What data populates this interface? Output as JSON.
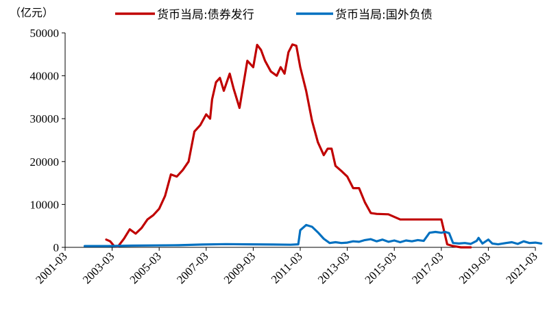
{
  "chart_data": {
    "type": "line",
    "unit_label": "（亿元）",
    "ylim": [
      0,
      50000
    ],
    "y_ticks": [
      "0",
      "10000",
      "20000",
      "30000",
      "40000",
      "50000"
    ],
    "y_tick_values": [
      0,
      10000,
      20000,
      30000,
      40000,
      50000
    ],
    "x_ticks": [
      "2001-03",
      "2003-03",
      "2005-03",
      "2007-03",
      "2009-03",
      "2011-03",
      "2013-03",
      "2015-03",
      "2017-03",
      "2019-03",
      "2021-03"
    ],
    "xlim": [
      "2001-03",
      "2021-03"
    ],
    "legend_position": "top",
    "grid": false,
    "series": [
      {
        "name": "货币当局:债券发行",
        "color": "#c00000",
        "points": [
          [
            "2002-12",
            1800
          ],
          [
            "2003-02",
            1400
          ],
          [
            "2003-04",
            300
          ],
          [
            "2003-06",
            200
          ],
          [
            "2003-09",
            2000
          ],
          [
            "2003-12",
            4200
          ],
          [
            "2004-03",
            3200
          ],
          [
            "2004-06",
            4500
          ],
          [
            "2004-09",
            6500
          ],
          [
            "2004-12",
            7500
          ],
          [
            "2005-03",
            9000
          ],
          [
            "2005-06",
            12000
          ],
          [
            "2005-09",
            17000
          ],
          [
            "2005-12",
            16500
          ],
          [
            "2006-03",
            18000
          ],
          [
            "2006-06",
            20000
          ],
          [
            "2006-09",
            27000
          ],
          [
            "2006-12",
            28500
          ],
          [
            "2007-03",
            31000
          ],
          [
            "2007-05",
            30000
          ],
          [
            "2007-06",
            34500
          ],
          [
            "2007-08",
            38500
          ],
          [
            "2007-10",
            39500
          ],
          [
            "2007-12",
            36500
          ],
          [
            "2008-03",
            40500
          ],
          [
            "2008-05",
            37000
          ],
          [
            "2008-08",
            32500
          ],
          [
            "2008-10",
            38000
          ],
          [
            "2008-12",
            43500
          ],
          [
            "2009-03",
            42000
          ],
          [
            "2009-05",
            47200
          ],
          [
            "2009-07",
            46000
          ],
          [
            "2009-09",
            43500
          ],
          [
            "2009-12",
            41000
          ],
          [
            "2010-03",
            40000
          ],
          [
            "2010-05",
            42000
          ],
          [
            "2010-07",
            40500
          ],
          [
            "2010-09",
            45500
          ],
          [
            "2010-11",
            47300
          ],
          [
            "2011-01",
            47000
          ],
          [
            "2011-03",
            42000
          ],
          [
            "2011-06",
            36500
          ],
          [
            "2011-09",
            29500
          ],
          [
            "2011-12",
            24500
          ],
          [
            "2012-03",
            21500
          ],
          [
            "2012-05",
            23000
          ],
          [
            "2012-07",
            23000
          ],
          [
            "2012-09",
            19000
          ],
          [
            "2012-12",
            17800
          ],
          [
            "2013-03",
            16500
          ],
          [
            "2013-06",
            13800
          ],
          [
            "2013-09",
            13800
          ],
          [
            "2013-12",
            10500
          ],
          [
            "2014-03",
            8000
          ],
          [
            "2014-06",
            7800
          ],
          [
            "2014-12",
            7700
          ],
          [
            "2015-06",
            6500
          ],
          [
            "2016-03",
            6500
          ],
          [
            "2016-12",
            6500
          ],
          [
            "2017-03",
            6500
          ],
          [
            "2017-06",
            700
          ],
          [
            "2017-09",
            300
          ],
          [
            "2018-01",
            0
          ],
          [
            "2018-06",
            0
          ]
        ]
      },
      {
        "name": "货币当局:国外负债",
        "color": "#0070c0",
        "points": [
          [
            "2002-01",
            300
          ],
          [
            "2003-01",
            300
          ],
          [
            "2004-01",
            400
          ],
          [
            "2005-01",
            450
          ],
          [
            "2006-01",
            500
          ],
          [
            "2007-01",
            650
          ],
          [
            "2008-01",
            750
          ],
          [
            "2009-01",
            700
          ],
          [
            "2010-01",
            650
          ],
          [
            "2010-10",
            600
          ],
          [
            "2011-02",
            700
          ],
          [
            "2011-03",
            4000
          ],
          [
            "2011-06",
            5200
          ],
          [
            "2011-09",
            4800
          ],
          [
            "2011-12",
            3500
          ],
          [
            "2012-03",
            2000
          ],
          [
            "2012-06",
            1000
          ],
          [
            "2012-09",
            1200
          ],
          [
            "2012-12",
            1000
          ],
          [
            "2013-03",
            1100
          ],
          [
            "2013-06",
            1400
          ],
          [
            "2013-09",
            1300
          ],
          [
            "2013-12",
            1700
          ],
          [
            "2014-03",
            1900
          ],
          [
            "2014-06",
            1400
          ],
          [
            "2014-09",
            1800
          ],
          [
            "2014-12",
            1300
          ],
          [
            "2015-03",
            1600
          ],
          [
            "2015-06",
            1200
          ],
          [
            "2015-09",
            1600
          ],
          [
            "2015-12",
            1400
          ],
          [
            "2016-03",
            1700
          ],
          [
            "2016-06",
            1500
          ],
          [
            "2016-09",
            3400
          ],
          [
            "2016-12",
            3600
          ],
          [
            "2017-03",
            3400
          ],
          [
            "2017-05",
            3600
          ],
          [
            "2017-07",
            3300
          ],
          [
            "2017-09",
            1000
          ],
          [
            "2017-12",
            900
          ],
          [
            "2018-03",
            1000
          ],
          [
            "2018-06",
            800
          ],
          [
            "2018-09",
            1500
          ],
          [
            "2018-10",
            2200
          ],
          [
            "2018-12",
            900
          ],
          [
            "2019-03",
            1800
          ],
          [
            "2019-05",
            900
          ],
          [
            "2019-08",
            700
          ],
          [
            "2019-12",
            1000
          ],
          [
            "2020-03",
            1200
          ],
          [
            "2020-06",
            800
          ],
          [
            "2020-09",
            1400
          ],
          [
            "2020-12",
            1000
          ],
          [
            "2021-03",
            1100
          ],
          [
            "2021-06",
            900
          ]
        ]
      }
    ]
  }
}
